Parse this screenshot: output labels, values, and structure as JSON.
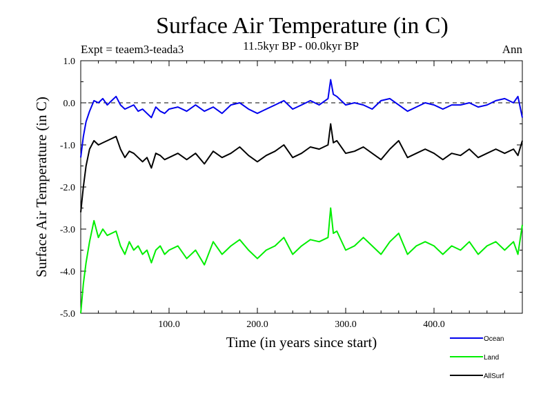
{
  "chart_data": {
    "type": "line",
    "title": "Surface Air Temperature (in C)",
    "subtitle": "11.5kyr BP - 00.0kyr BP",
    "experiment": "Expt = teaem3-teada3",
    "season": "Ann",
    "xlabel": "Time (in years since start)",
    "ylabel": "Surface Air Temperature (in C)",
    "xlim": [
      0,
      500
    ],
    "ylim": [
      -5.0,
      1.0
    ],
    "x_ticks": [
      100,
      200,
      300,
      400
    ],
    "x_tick_labels": [
      "100.0",
      "200.0",
      "300.0",
      "400.0"
    ],
    "y_ticks": [
      1.0,
      0.0,
      -1.0,
      -2.0,
      -3.0,
      -4.0,
      -5.0
    ],
    "y_tick_labels": [
      "1.0",
      "0.0",
      "-1.0",
      "-2.0",
      "-3.0",
      "-4.0",
      "-5.0"
    ],
    "reference_line": 0.0,
    "legend_position": "bottom-right",
    "series": [
      {
        "name": "Ocean",
        "color": "#0000ee",
        "x": [
          0,
          3,
          6,
          10,
          15,
          20,
          25,
          30,
          35,
          40,
          45,
          50,
          55,
          60,
          65,
          70,
          75,
          80,
          85,
          90,
          95,
          100,
          110,
          120,
          130,
          140,
          150,
          160,
          170,
          180,
          190,
          200,
          210,
          220,
          230,
          240,
          250,
          260,
          270,
          280,
          283,
          286,
          290,
          300,
          310,
          320,
          330,
          340,
          350,
          360,
          370,
          380,
          390,
          400,
          410,
          420,
          430,
          440,
          450,
          460,
          470,
          480,
          490,
          495,
          500
        ],
        "values": [
          -1.3,
          -0.8,
          -0.45,
          -0.2,
          0.05,
          0.0,
          0.1,
          -0.05,
          0.05,
          0.15,
          -0.05,
          -0.15,
          -0.1,
          -0.05,
          -0.2,
          -0.15,
          -0.25,
          -0.35,
          -0.1,
          -0.2,
          -0.25,
          -0.15,
          -0.1,
          -0.2,
          -0.05,
          -0.2,
          -0.1,
          -0.25,
          -0.05,
          0.0,
          -0.15,
          -0.25,
          -0.15,
          -0.05,
          0.05,
          -0.15,
          -0.05,
          0.05,
          -0.05,
          0.1,
          0.55,
          0.2,
          0.15,
          -0.05,
          0.0,
          -0.05,
          -0.15,
          0.05,
          0.1,
          -0.05,
          -0.2,
          -0.1,
          0.0,
          -0.05,
          -0.15,
          -0.05,
          -0.05,
          0.0,
          -0.1,
          -0.05,
          0.05,
          0.1,
          0.0,
          0.15,
          -0.35
        ]
      },
      {
        "name": "Land",
        "color": "#00ee00",
        "x": [
          0,
          3,
          6,
          10,
          15,
          20,
          25,
          30,
          35,
          40,
          45,
          50,
          55,
          60,
          65,
          70,
          75,
          80,
          85,
          90,
          95,
          100,
          110,
          120,
          130,
          140,
          150,
          160,
          170,
          180,
          190,
          200,
          210,
          220,
          230,
          240,
          250,
          260,
          270,
          280,
          283,
          286,
          290,
          300,
          310,
          320,
          330,
          340,
          350,
          360,
          370,
          380,
          390,
          400,
          410,
          420,
          430,
          440,
          450,
          460,
          470,
          480,
          490,
          495,
          500
        ],
        "values": [
          -5.0,
          -4.3,
          -3.8,
          -3.3,
          -2.8,
          -3.2,
          -3.0,
          -3.15,
          -3.1,
          -3.05,
          -3.4,
          -3.6,
          -3.3,
          -3.5,
          -3.4,
          -3.6,
          -3.5,
          -3.8,
          -3.5,
          -3.4,
          -3.6,
          -3.5,
          -3.4,
          -3.7,
          -3.5,
          -3.85,
          -3.3,
          -3.6,
          -3.4,
          -3.25,
          -3.5,
          -3.7,
          -3.5,
          -3.4,
          -3.2,
          -3.6,
          -3.4,
          -3.25,
          -3.3,
          -3.2,
          -2.5,
          -3.1,
          -3.05,
          -3.5,
          -3.4,
          -3.2,
          -3.4,
          -3.6,
          -3.3,
          -3.1,
          -3.6,
          -3.4,
          -3.3,
          -3.4,
          -3.6,
          -3.4,
          -3.5,
          -3.3,
          -3.6,
          -3.4,
          -3.3,
          -3.5,
          -3.3,
          -3.6,
          -2.9
        ]
      },
      {
        "name": "AllSurf",
        "color": "#000000",
        "x": [
          0,
          3,
          6,
          10,
          15,
          20,
          25,
          30,
          35,
          40,
          45,
          50,
          55,
          60,
          65,
          70,
          75,
          80,
          85,
          90,
          95,
          100,
          110,
          120,
          130,
          140,
          150,
          160,
          170,
          180,
          190,
          200,
          210,
          220,
          230,
          240,
          250,
          260,
          270,
          280,
          283,
          286,
          290,
          300,
          310,
          320,
          330,
          340,
          350,
          360,
          370,
          380,
          390,
          400,
          410,
          420,
          430,
          440,
          450,
          460,
          470,
          480,
          490,
          495,
          500
        ],
        "values": [
          -2.6,
          -2.0,
          -1.5,
          -1.1,
          -0.9,
          -1.0,
          -0.95,
          -0.9,
          -0.85,
          -0.8,
          -1.1,
          -1.3,
          -1.15,
          -1.2,
          -1.3,
          -1.4,
          -1.3,
          -1.55,
          -1.2,
          -1.25,
          -1.35,
          -1.3,
          -1.2,
          -1.35,
          -1.2,
          -1.45,
          -1.15,
          -1.3,
          -1.2,
          -1.05,
          -1.25,
          -1.4,
          -1.25,
          -1.15,
          -1.0,
          -1.3,
          -1.2,
          -1.05,
          -1.1,
          -1.0,
          -0.5,
          -0.95,
          -0.9,
          -1.2,
          -1.15,
          -1.05,
          -1.2,
          -1.35,
          -1.1,
          -0.9,
          -1.3,
          -1.2,
          -1.1,
          -1.2,
          -1.35,
          -1.2,
          -1.25,
          -1.1,
          -1.3,
          -1.2,
          -1.1,
          -1.2,
          -1.1,
          -1.25,
          -0.9
        ]
      }
    ]
  }
}
